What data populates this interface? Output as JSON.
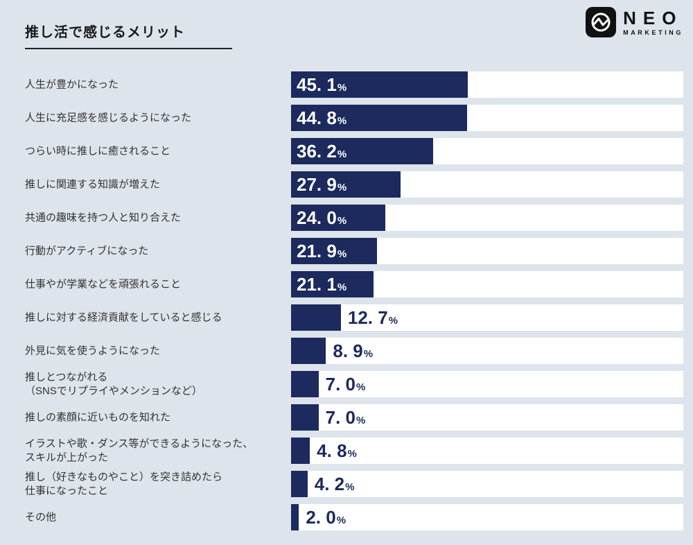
{
  "page": {
    "title": "推し活で感じるメリット",
    "background_color": "#dde4eb"
  },
  "brand": {
    "name": "NEO",
    "subname": "MARKETING",
    "logo_icon": "pulse-line-in-circle",
    "logo_color": "#111111"
  },
  "chart_data": {
    "type": "bar",
    "orientation": "horizontal",
    "title": "推し活で感じるメリット",
    "unit": "%",
    "xlim": [
      0,
      100
    ],
    "bar_color": "#1c2a5e",
    "track_color": "#ffffff",
    "legend": "none",
    "grid": "off",
    "categories": [
      "人生が豊かになった",
      "人生に充足感を感じるようになった",
      "つらい時に推しに癒されること",
      "推しに関連する知識が増えた",
      "共通の趣味を持つ人と知り合えた",
      "行動がアクティブになった",
      "仕事やが学業などを頑張れること",
      "推しに対する経済貢献をしていると感じる",
      "外見に気を使うようになった",
      "推しとつながれる\n（SNSでリプライやメンションなど）",
      "推しの素顔に近いものを知れた",
      "イラストや歌・ダンス等ができるようになった、\nスキルが上がった",
      "推し（好きなものやこと）を突き詰めたら\n仕事になったこと",
      "その他"
    ],
    "values": [
      45.1,
      44.8,
      36.2,
      27.9,
      24.0,
      21.9,
      21.1,
      12.7,
      8.9,
      7.0,
      7.0,
      4.8,
      4.2,
      2.0
    ],
    "value_labels": [
      "45. 1",
      "44. 8",
      "36. 2",
      "27. 9",
      "24. 0",
      "21. 9",
      "21. 1",
      "12. 7",
      "8. 9",
      "7. 0",
      "7. 0",
      "4. 8",
      "4. 2",
      "2. 0"
    ]
  }
}
